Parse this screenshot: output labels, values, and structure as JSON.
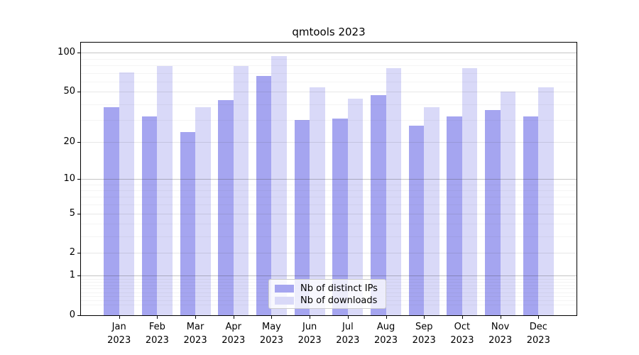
{
  "title": "qmtools 2023",
  "chart_data": {
    "type": "bar",
    "title": "qmtools 2023",
    "categories": [
      "Jan 2023",
      "Feb 2023",
      "Mar 2023",
      "Apr 2023",
      "May 2023",
      "Jun 2023",
      "Jul 2023",
      "Aug 2023",
      "Sep 2023",
      "Oct 2023",
      "Nov 2023",
      "Dec 2023"
    ],
    "series": [
      {
        "name": "Nb of distinct IPs",
        "color": "#a5a5f0",
        "values": [
          38,
          32,
          24,
          43,
          66,
          30,
          31,
          47,
          27,
          32,
          36,
          32
        ]
      },
      {
        "name": "Nb of downloads",
        "color": "#d9d9f8",
        "values": [
          71,
          79,
          38,
          79,
          95,
          54,
          44,
          76,
          38,
          76,
          50,
          54
        ]
      }
    ],
    "xlabel": "",
    "ylabel": "",
    "yscale": "log1p",
    "ylim": [
      0,
      120
    ],
    "yticks_labeled": [
      0,
      1,
      2,
      5,
      10,
      20,
      50,
      100
    ],
    "yticks_major": [
      1,
      10,
      100
    ],
    "yticks_mid": [
      2,
      5,
      20,
      50
    ],
    "yticks_minor": [
      0.2,
      0.3,
      0.4,
      0.5,
      0.6,
      0.7,
      0.8,
      0.9,
      3,
      4,
      6,
      7,
      8,
      9,
      30,
      40,
      60,
      70,
      80,
      90
    ],
    "grid": true,
    "legend_position": "lower center"
  },
  "legend": {
    "items": [
      {
        "label": "Nb of distinct IPs"
      },
      {
        "label": "Nb of downloads"
      }
    ]
  }
}
